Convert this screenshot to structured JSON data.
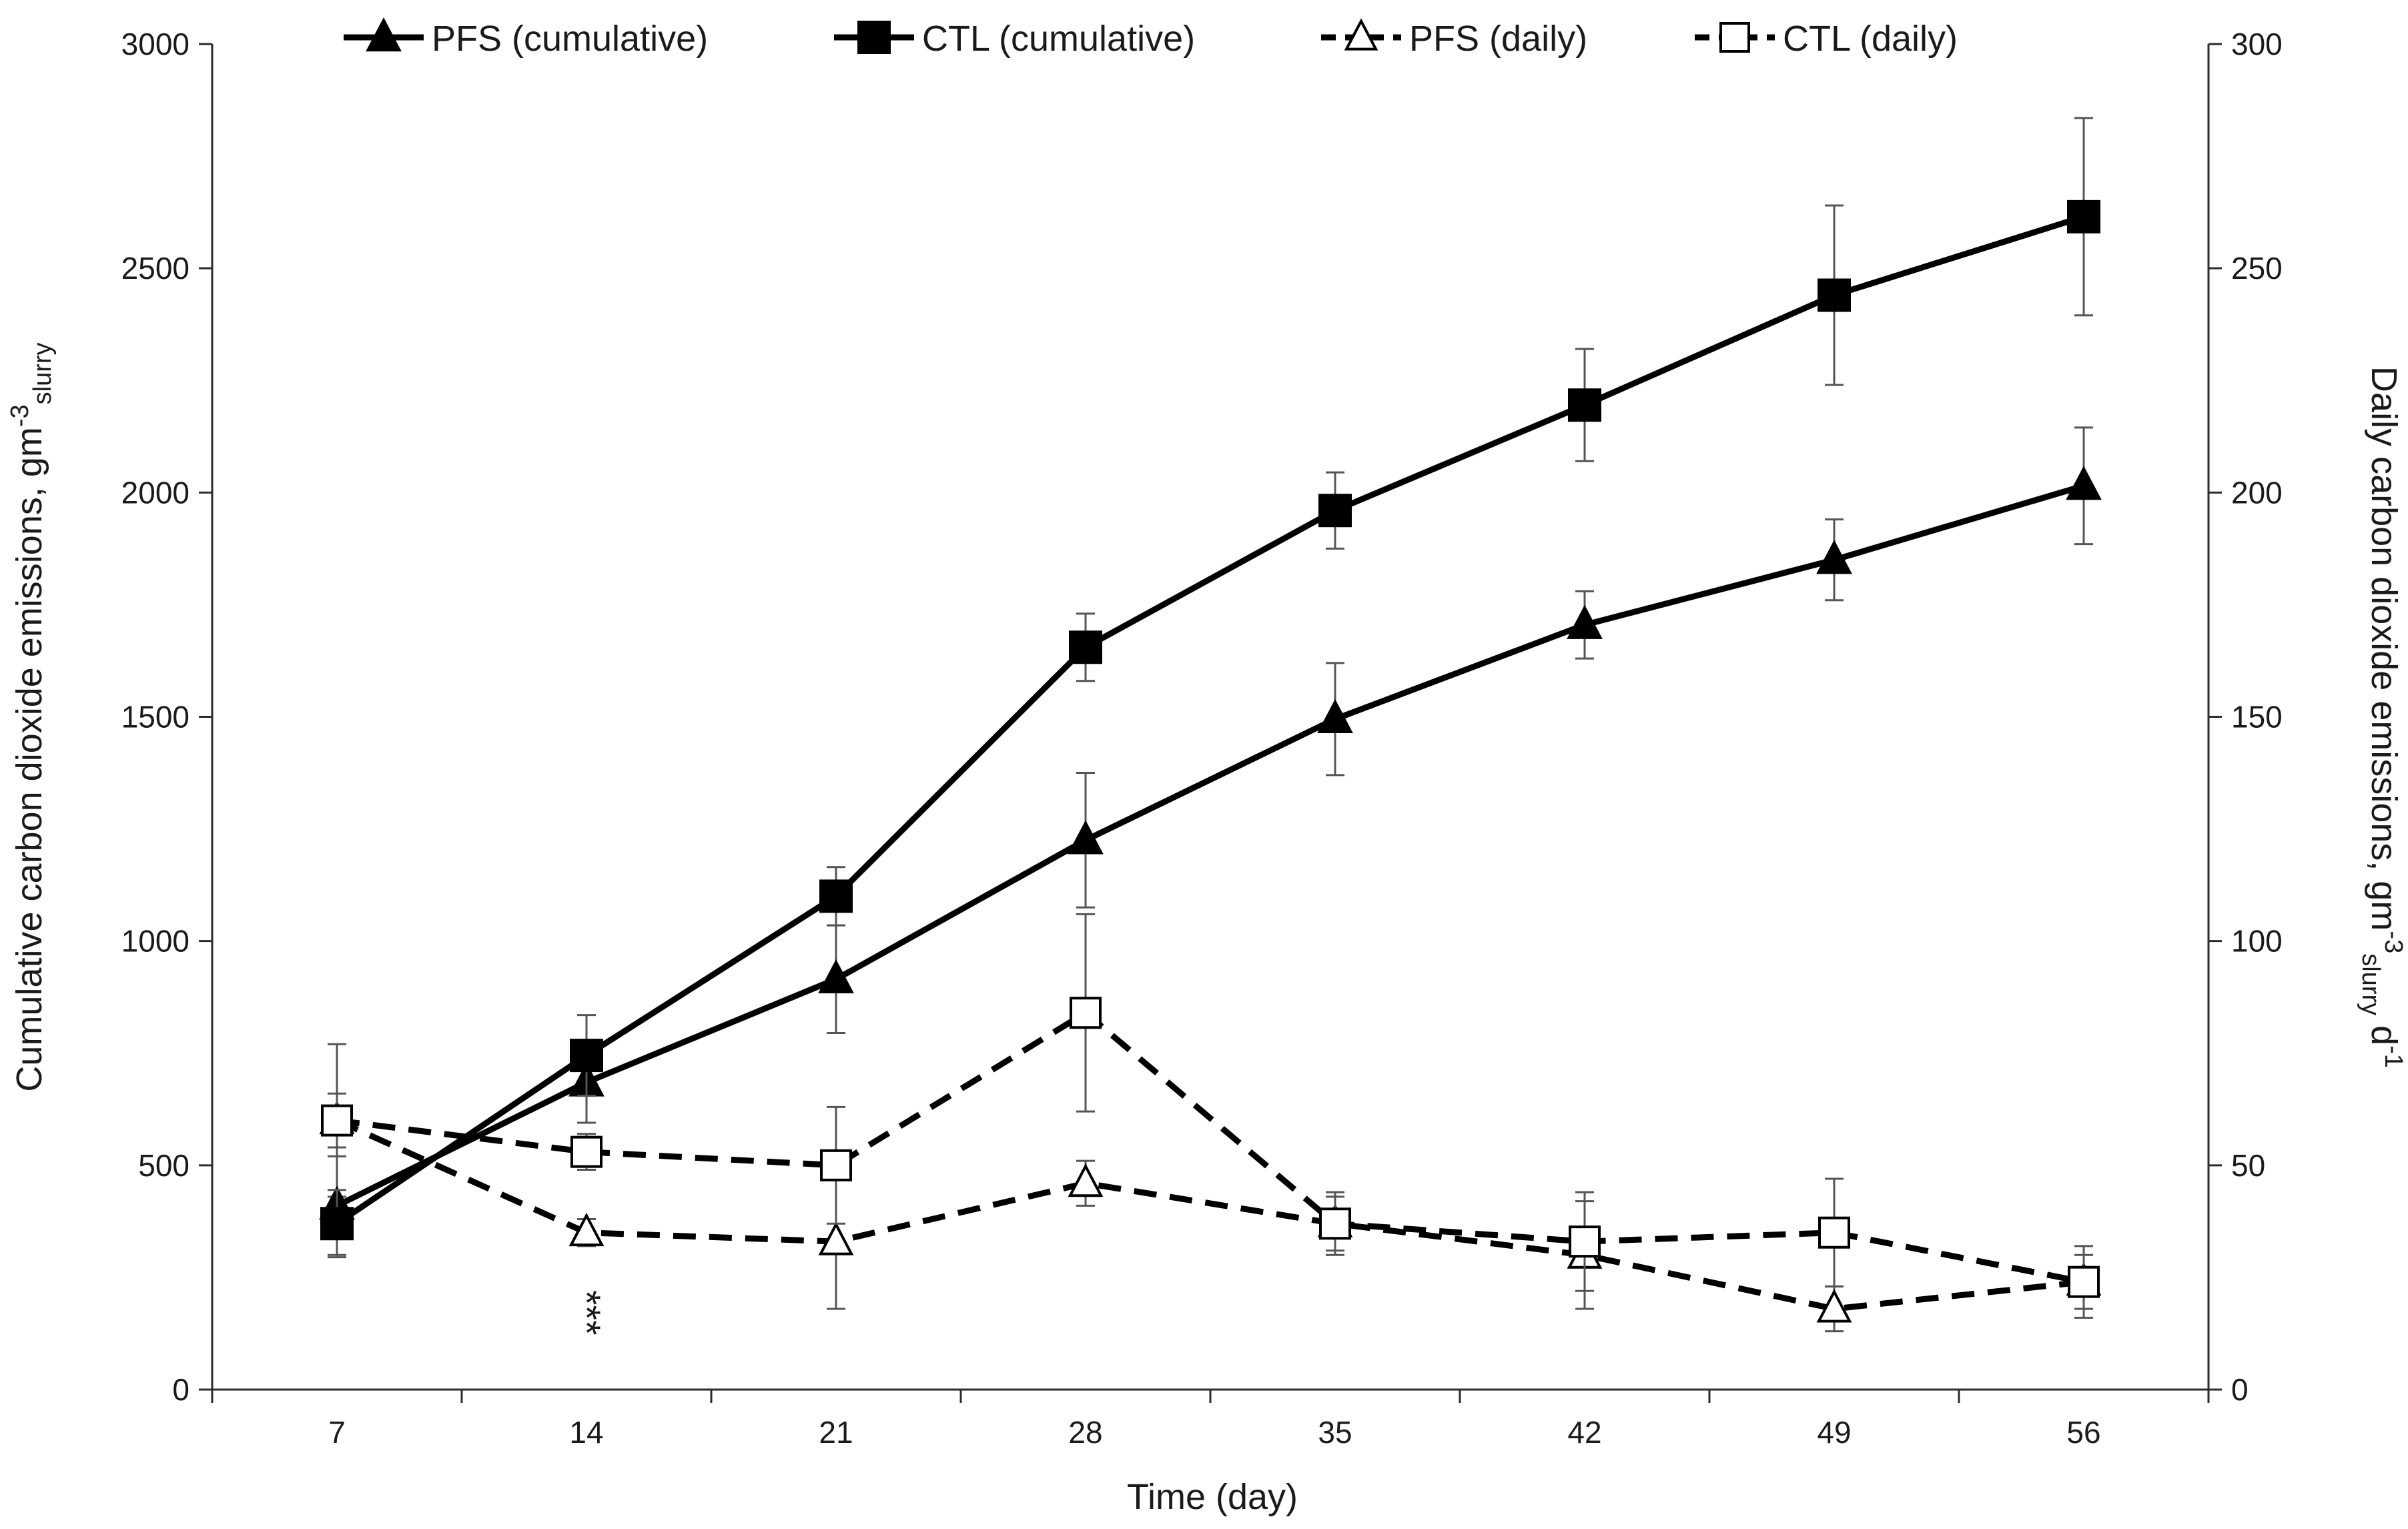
{
  "chart_data": {
    "type": "line",
    "x": [
      7,
      14,
      21,
      28,
      35,
      42,
      49,
      56
    ],
    "xlabel": "Time (day)",
    "ylabel_left": {
      "text": "Cumulative carbon dioxide emissions, gm",
      "sup": "-3",
      "sub": "slurry"
    },
    "ylabel_right": {
      "text": "Daily carbon dioxide emissions, gm",
      "sup": "-3",
      "sub": "slurry",
      "tail": " d",
      "tail_sup": "-1"
    },
    "ylim_left": [
      0,
      3000
    ],
    "ylim_right": [
      0,
      300
    ],
    "yticks_left": [
      "0",
      "500",
      "1000",
      "1500",
      "2000",
      "2500",
      "3000"
    ],
    "yticks_right": [
      "0",
      "50",
      "100",
      "150",
      "200",
      "250",
      "300"
    ],
    "xticks": [
      "7",
      "14",
      "21",
      "28",
      "35",
      "42",
      "49",
      "56"
    ],
    "series": [
      {
        "name": "PFS (cumulative)",
        "axis": "left",
        "marker": "triangle",
        "filled": true,
        "dashed": false,
        "values": [
          410,
          685,
          915,
          1225,
          1495,
          1705,
          1850,
          2015
        ],
        "errors": [
          110,
          90,
          120,
          150,
          125,
          75,
          90,
          130
        ]
      },
      {
        "name": "CTL (cumulative)",
        "axis": "left",
        "marker": "square",
        "filled": true,
        "dashed": false,
        "values": [
          370,
          745,
          1100,
          1655,
          1960,
          2195,
          2440,
          2615
        ],
        "errors": [
          75,
          90,
          65,
          75,
          85,
          125,
          200,
          220
        ]
      },
      {
        "name": "PFS (daily)",
        "axis": "right",
        "marker": "triangle",
        "filled": false,
        "dashed": true,
        "values": [
          60,
          35,
          33,
          46,
          37,
          30,
          18,
          24
        ],
        "errors": [
          6,
          3,
          15,
          5,
          7,
          12,
          5,
          6
        ]
      },
      {
        "name": "CTL (daily)",
        "axis": "right",
        "marker": "square",
        "filled": false,
        "dashed": true,
        "values": [
          60,
          53,
          50,
          84,
          37,
          33,
          35,
          24
        ],
        "errors": [
          17,
          4,
          13,
          22,
          6,
          11,
          12,
          8
        ]
      }
    ],
    "annotations": [
      {
        "text": "***",
        "x": 14,
        "series": "PFS (daily)"
      }
    ],
    "legend_position": "top",
    "grid": false,
    "colors": {
      "line": "#000000",
      "error": "#555555",
      "axis": "#2b2b2b"
    }
  }
}
